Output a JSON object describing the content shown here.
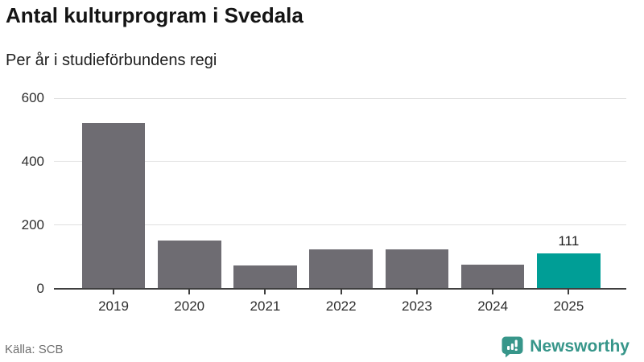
{
  "header": {
    "title": "Antal kulturprogram i Svedala",
    "subtitle": "Per år i studieförbundens regi"
  },
  "chart_data": {
    "type": "bar",
    "title": "Antal kulturprogram i Svedala",
    "subtitle": "Per år i studieförbundens regi",
    "categories": [
      "2019",
      "2020",
      "2021",
      "2022",
      "2023",
      "2024",
      "2025"
    ],
    "values": [
      522,
      150,
      72,
      124,
      122,
      74,
      111
    ],
    "highlight_index": 6,
    "annotations": [
      {
        "index": 6,
        "text": "111"
      }
    ],
    "xlabel": "",
    "ylabel": "",
    "ylim": [
      0,
      600
    ],
    "yticks": [
      0,
      200,
      400,
      600
    ],
    "grid": "horizontal",
    "legend": "none",
    "colors": {
      "bar": "#6e6c72",
      "highlight": "#009e96",
      "axis": "#3f3f3f",
      "gridline": "#e0e0e0"
    }
  },
  "footer": {
    "source": "Källa: SCB",
    "brand": {
      "name": "Newsworthy",
      "color": "#37968a"
    }
  }
}
